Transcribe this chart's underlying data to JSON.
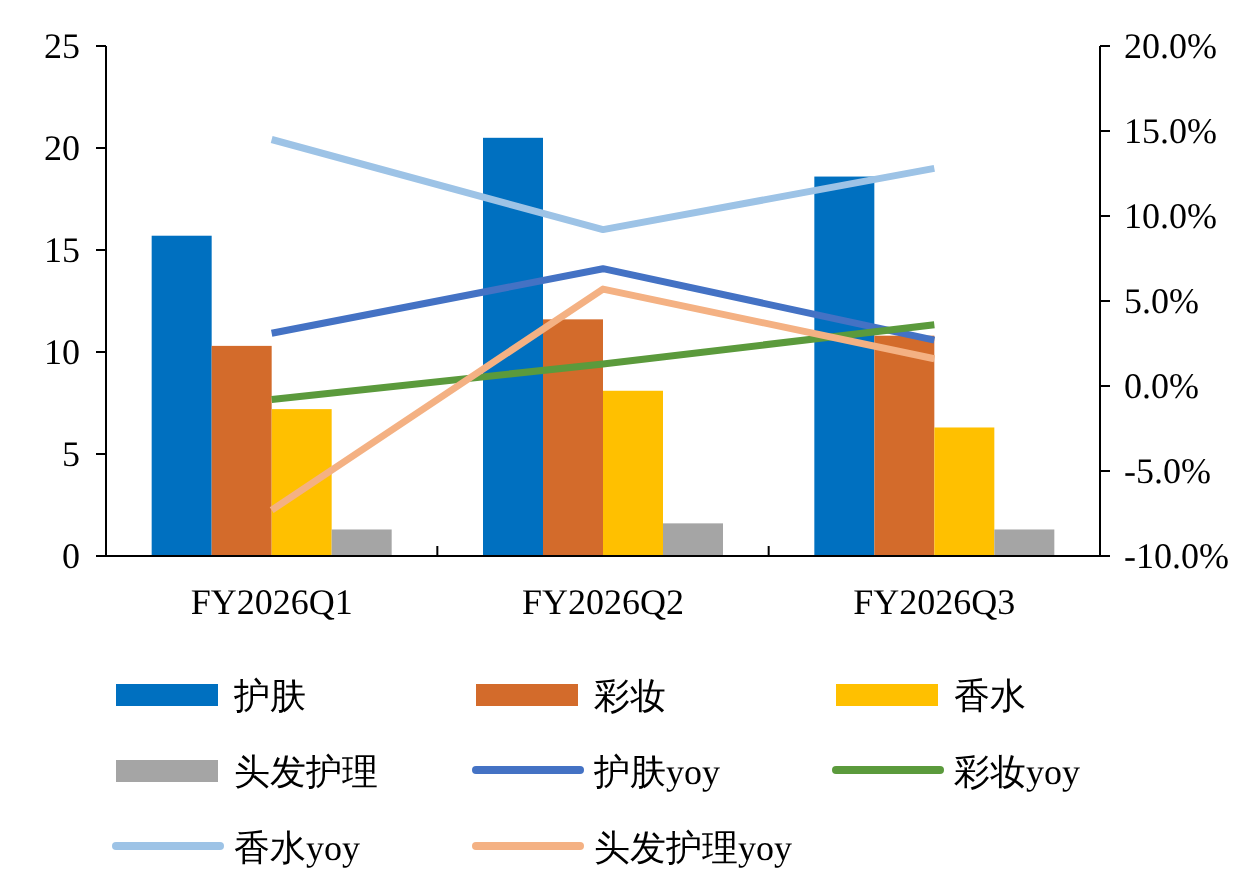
{
  "chart_data": {
    "type": "bar",
    "categories": [
      "FY2026Q1",
      "FY2026Q2",
      "FY2026Q3"
    ],
    "series": [
      {
        "name": "护肤",
        "color": "#0070c0",
        "values": [
          15.7,
          20.5,
          18.6
        ]
      },
      {
        "name": "彩妆",
        "color": "#d36b2b",
        "values": [
          10.3,
          11.6,
          10.8
        ]
      },
      {
        "name": "香水",
        "color": "#ffc000",
        "values": [
          7.2,
          8.1,
          6.3
        ]
      },
      {
        "name": "头发护理",
        "color": "#a5a5a5",
        "values": [
          1.3,
          1.6,
          1.3
        ]
      },
      {
        "name": "护肤yoy",
        "type": "line",
        "axis": "y2",
        "color": "#4472c4",
        "values": [
          3.1,
          6.9,
          2.7
        ]
      },
      {
        "name": "彩妆yoy",
        "type": "line",
        "axis": "y2",
        "color": "#5b9a3c",
        "values": [
          -0.8,
          1.3,
          3.6
        ]
      },
      {
        "name": "香水yoy",
        "type": "line",
        "axis": "y2",
        "color": "#9dc3e6",
        "values": [
          14.5,
          9.2,
          12.8
        ]
      },
      {
        "name": "头发护理yoy",
        "type": "line",
        "axis": "y2",
        "color": "#f4b183",
        "values": [
          -7.3,
          5.7,
          1.6
        ]
      }
    ],
    "ylim": [
      0,
      25
    ],
    "yticks": [
      0,
      5,
      10,
      15,
      20,
      25
    ],
    "y2lim": [
      -10,
      20
    ],
    "y2ticks": [
      {
        "value": -10,
        "label": "-10.0%"
      },
      {
        "value": -5,
        "label": "-5.0%"
      },
      {
        "value": 0,
        "label": "0.0%"
      },
      {
        "value": 5,
        "label": "5.0%"
      },
      {
        "value": 10,
        "label": "10.0%"
      },
      {
        "value": 15,
        "label": "15.0%"
      },
      {
        "value": 20,
        "label": "20.0%"
      }
    ],
    "legend": "bottom"
  }
}
